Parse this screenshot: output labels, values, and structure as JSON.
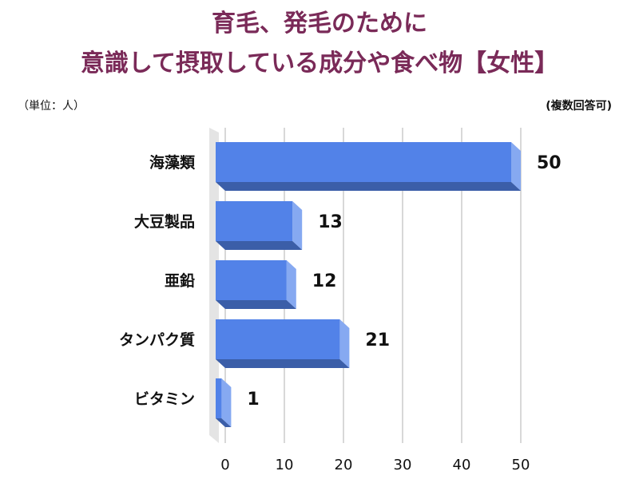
{
  "header": {
    "title_line1": "育毛、発毛のために",
    "title_line2": "意識して摂取している成分や食べ物【女性】",
    "unit_note": "（単位：人）",
    "answer_note": "(複数回答可)"
  },
  "chart_data": {
    "type": "bar",
    "orientation": "horizontal",
    "categories": [
      "海藻類",
      "大豆製品",
      "亜鉛",
      "タンパク質",
      "ビタミン"
    ],
    "values": [
      50,
      13,
      12,
      21,
      1
    ],
    "xlim": [
      0,
      50
    ],
    "xticks": [
      0,
      10,
      20,
      30,
      40,
      50
    ],
    "grid": true,
    "colors": {
      "bar_front": "#5282e8",
      "bar_side": "#86a9f1",
      "bar_bottom": "#3b5ea8",
      "grid": "#cccccc",
      "wall": "#e4e4e4"
    }
  }
}
